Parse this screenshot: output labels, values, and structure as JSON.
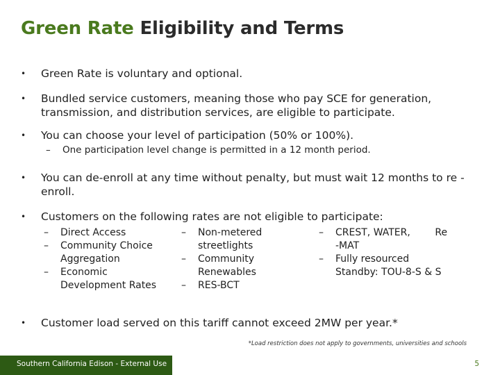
{
  "slide": {
    "title_accent": "Green Rate",
    "title_rest": " Eligibility and Terms",
    "bullet_marker": "•",
    "dash_marker": "–",
    "bullets": [
      {
        "text": "Green Rate is voluntary and optional."
      },
      {
        "text": "Bundled service customers, meaning those who pay SCE for generation, transmission, and distribution services, are eligible to participate."
      },
      {
        "text": "You can choose your level of participation (50% or 100%)."
      },
      {
        "text": "You can de-enroll at any time without penalty, but must wait 12 months to re -enroll."
      },
      {
        "text": "Customers on the following rates are not eligible to participate:"
      },
      {
        "text": "Customer load served on this tariff cannot exceed 2MW per year.*"
      }
    ],
    "sub_participation": "One participation level change is permitted in a 12 month period.",
    "ineligible_col1": [
      {
        "line1": "Direct Access",
        "line2": ""
      },
      {
        "line1": "Community Choice",
        "line2": "Aggregation"
      },
      {
        "line1": "Economic",
        "line2": "Development Rates"
      }
    ],
    "ineligible_col2": [
      {
        "line1": "Non-metered",
        "line2": "streetlights"
      },
      {
        "line1": "Community",
        "line2": "Renewables"
      },
      {
        "line1": "RES-BCT",
        "line2": ""
      }
    ],
    "ineligible_col3": [
      {
        "line1": "CREST, WATER,        Re",
        "line2": "-MAT"
      },
      {
        "line1": "Fully resourced",
        "line2": "Standby: TOU-8-S & S"
      }
    ],
    "footnote": "*Load restriction does not apply to governments, universities and schools",
    "footer_label": "Southern California Edison - External Use",
    "page_number": "5"
  }
}
